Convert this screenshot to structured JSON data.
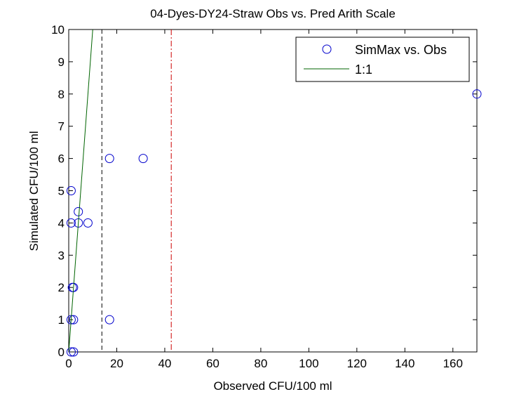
{
  "chart_data": {
    "type": "scatter",
    "title": "04-Dyes-DY24-Straw Obs vs. Pred Arith Scale",
    "xlabel": "Observed CFU/100 ml",
    "ylabel": "Simulated CFU/100 ml",
    "xlim": [
      0,
      170
    ],
    "ylim": [
      0,
      10
    ],
    "xticks": [
      0,
      20,
      40,
      60,
      80,
      100,
      120,
      140,
      160
    ],
    "yticks": [
      0,
      1,
      2,
      3,
      4,
      5,
      6,
      7,
      8,
      9,
      10
    ],
    "grid": false,
    "legend_placement": "top-right",
    "series": [
      {
        "name": "SimMax vs. Obs",
        "kind": "marker-circle",
        "color": "#0000cc",
        "points": [
          [
            17,
            6
          ],
          [
            31,
            6
          ],
          [
            1,
            5
          ],
          [
            4,
            4.35
          ],
          [
            1,
            4
          ],
          [
            4,
            4
          ],
          [
            8,
            4
          ],
          [
            2,
            2
          ],
          [
            1.5,
            2
          ],
          [
            1,
            1
          ],
          [
            2,
            1
          ],
          [
            17,
            1
          ],
          [
            1,
            0
          ],
          [
            2,
            0
          ],
          [
            170,
            8
          ]
        ]
      },
      {
        "name": "1:1",
        "kind": "line",
        "color": "#006400",
        "points": [
          [
            0,
            0
          ],
          [
            10,
            10
          ]
        ]
      }
    ],
    "vlines": [
      {
        "x": 13.8,
        "style": "dashed",
        "color": "#000000"
      },
      {
        "x": 42.7,
        "style": "dash-dot",
        "color": "#cc0000"
      }
    ]
  }
}
